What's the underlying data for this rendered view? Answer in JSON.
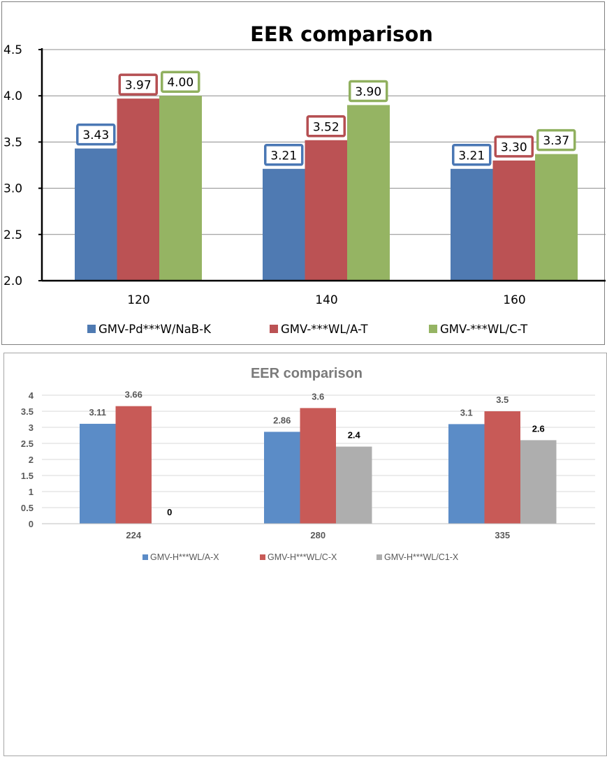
{
  "chart_data": [
    {
      "type": "bar",
      "title": "EER comparison",
      "categories": [
        "120",
        "140",
        "160"
      ],
      "ylim": [
        2.0,
        4.5
      ],
      "yticks": [
        "2.0",
        "2.5",
        "3.0",
        "3.5",
        "4.0",
        "4.5"
      ],
      "grid": true,
      "legend": "bottom",
      "series": [
        {
          "name": "GMV-Pd***W/NaB-K",
          "color": "#4f7ab2",
          "label_color": "#4a77b4",
          "values": [
            3.43,
            3.21,
            3.21
          ],
          "labels": [
            "3.43",
            "3.21",
            "3.21"
          ]
        },
        {
          "name": "GMV-***WL/A-T",
          "color": "#bb5254",
          "label_color": "#b54f52",
          "values": [
            3.97,
            3.52,
            3.3
          ],
          "labels": [
            "3.97",
            "3.52",
            "3.30"
          ]
        },
        {
          "name": "GMV-***WL/C-T",
          "color": "#95b463",
          "label_color": "#90b05f",
          "values": [
            4.0,
            3.9,
            3.37
          ],
          "labels": [
            "4.00",
            "3.90",
            "3.37"
          ]
        }
      ]
    },
    {
      "type": "bar",
      "title": "EER comparison",
      "categories": [
        "224",
        "280",
        "335"
      ],
      "ylim": [
        0,
        4
      ],
      "yticks": [
        "0",
        "0.5",
        "1",
        "1.5",
        "2",
        "2.5",
        "3",
        "3.5",
        "4"
      ],
      "grid": true,
      "legend": "bottom",
      "series": [
        {
          "name": "GMV-H***WL/A-X",
          "color": "#5b8cc7",
          "values": [
            3.11,
            2.86,
            3.1
          ],
          "labels": [
            "3.11",
            "2.86",
            "3.1"
          ]
        },
        {
          "name": "GMV-H***WL/C-X",
          "color": "#c85a57",
          "values": [
            3.66,
            3.6,
            3.5
          ],
          "labels": [
            "3.66",
            "3.6",
            "3.5"
          ]
        },
        {
          "name": "GMV-H***WL/C1-X",
          "color": "#aeaeae",
          "values": [
            0,
            2.4,
            2.6
          ],
          "labels": [
            "0",
            "2.4",
            "2.6"
          ]
        }
      ]
    }
  ]
}
